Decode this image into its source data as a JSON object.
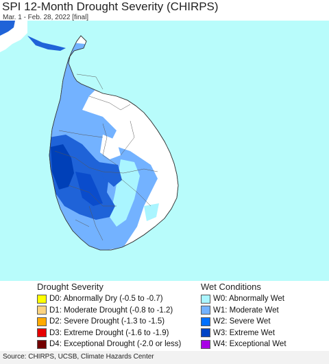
{
  "header": {
    "title": "SPI 12-Month Drought Severity (CHIRPS)",
    "subtitle": "Mar. 1 - Feb. 28, 2022 [final]"
  },
  "map": {
    "ocean_color": "#b8fcfb",
    "land_outside_color": "#ffffff"
  },
  "legend": {
    "drought": {
      "title": "Drought Severity",
      "items": [
        {
          "label": "D0: Abnormally Dry (-0.5 to -0.7)",
          "color": "#ffff00"
        },
        {
          "label": "D1: Moderate Drought (-0.8 to -1.2)",
          "color": "#fcd37f"
        },
        {
          "label": "D2: Severe Drought (-1.3 to -1.5)",
          "color": "#ffaa00"
        },
        {
          "label": "D3: Extreme Drought (-1.6 to -1.9)",
          "color": "#e60000"
        },
        {
          "label": "D4: Exceptional Drought (-2.0 or less)",
          "color": "#730000"
        }
      ]
    },
    "wet": {
      "title": "Wet Conditions",
      "items": [
        {
          "label": "W0: Abnormally Wet",
          "color": "#aaf5ff"
        },
        {
          "label": "W1: Moderate Wet",
          "color": "#73b2ff"
        },
        {
          "label": "W2: Severe Wet",
          "color": "#0070ff"
        },
        {
          "label": "W3: Extreme Wet",
          "color": "#0044c4"
        },
        {
          "label": "W4: Exceptional Wet",
          "color": "#a900e6"
        }
      ]
    }
  },
  "footer": {
    "source": "Source: CHIRPS, UCSB, Climate Hazards Center"
  }
}
